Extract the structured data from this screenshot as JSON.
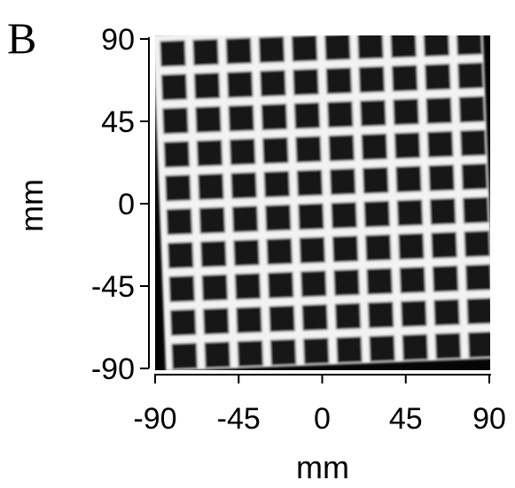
{
  "panel": {
    "letter": "B"
  },
  "axes": {
    "x_label": "mm",
    "y_label": "mm",
    "x_ticks": [
      "-90",
      "-45",
      "0",
      "45",
      "90"
    ],
    "y_ticks": [
      "90",
      "45",
      "0",
      "-45",
      "-90"
    ],
    "x_range": [
      -90,
      90
    ],
    "y_range": [
      -90,
      90
    ]
  },
  "image": {
    "grid_rows": 10,
    "grid_cols": 10,
    "colors": {
      "background": "#050505",
      "grid_lines": "#f2f2f2",
      "cells": "#111111"
    }
  }
}
